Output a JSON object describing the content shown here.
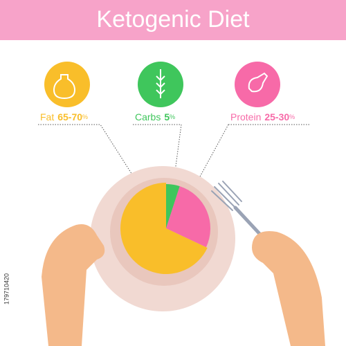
{
  "chart_data": {
    "type": "pie",
    "title": "Ketogenic Diet",
    "categories": [
      "Fat",
      "Carbs",
      "Protein"
    ],
    "ranges": [
      "65-70",
      "5",
      "25-30"
    ],
    "unit": "%",
    "values": [
      68,
      5,
      27
    ],
    "colors": [
      "#f9be2a",
      "#3fc65c",
      "#f76aa8"
    ],
    "watermark": "179710420"
  }
}
